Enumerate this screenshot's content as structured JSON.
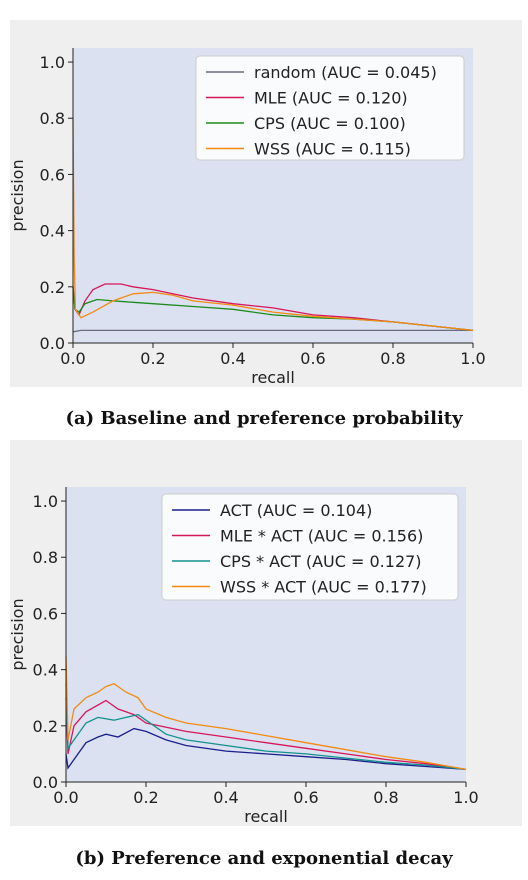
{
  "captions": {
    "a": "(a) Baseline and preference probability",
    "b": "(b) Preference and exponential decay"
  },
  "chart_data": [
    {
      "type": "line",
      "xlabel": "recall",
      "ylabel": "precision",
      "xlim": [
        0.0,
        1.0
      ],
      "ylim": [
        0.0,
        1.05
      ],
      "xticks": [
        "0.0",
        "0.2",
        "0.4",
        "0.6",
        "0.8",
        "1.0"
      ],
      "yticks": [
        "0.0",
        "0.2",
        "0.4",
        "0.6",
        "0.8",
        "1.0"
      ],
      "grid": false,
      "legend_position": "top-right",
      "background_color": "#dbe1f1",
      "series": [
        {
          "name": "random (AUC = 0.045)",
          "color": "#6b6b80",
          "points": [
            [
              0.0,
              0.04
            ],
            [
              0.02,
              0.045
            ],
            [
              0.1,
              0.045
            ],
            [
              0.3,
              0.045
            ],
            [
              0.5,
              0.045
            ],
            [
              0.7,
              0.045
            ],
            [
              0.9,
              0.045
            ],
            [
              1.0,
              0.045
            ]
          ]
        },
        {
          "name": "MLE (AUC = 0.120)",
          "color": "#d6175a",
          "points": [
            [
              0.0,
              0.2
            ],
            [
              0.005,
              0.12
            ],
            [
              0.015,
              0.1
            ],
            [
              0.03,
              0.15
            ],
            [
              0.05,
              0.19
            ],
            [
              0.08,
              0.21
            ],
            [
              0.12,
              0.21
            ],
            [
              0.15,
              0.2
            ],
            [
              0.2,
              0.19
            ],
            [
              0.3,
              0.16
            ],
            [
              0.4,
              0.14
            ],
            [
              0.5,
              0.125
            ],
            [
              0.6,
              0.1
            ],
            [
              0.7,
              0.09
            ],
            [
              0.8,
              0.075
            ],
            [
              0.9,
              0.06
            ],
            [
              1.0,
              0.045
            ]
          ]
        },
        {
          "name": "CPS (AUC = 0.100)",
          "color": "#1e8a1e",
          "points": [
            [
              0.0,
              0.2
            ],
            [
              0.005,
              0.12
            ],
            [
              0.015,
              0.11
            ],
            [
              0.03,
              0.14
            ],
            [
              0.06,
              0.155
            ],
            [
              0.1,
              0.15
            ],
            [
              0.15,
              0.145
            ],
            [
              0.2,
              0.14
            ],
            [
              0.3,
              0.13
            ],
            [
              0.4,
              0.12
            ],
            [
              0.5,
              0.1
            ],
            [
              0.6,
              0.09
            ],
            [
              0.7,
              0.085
            ],
            [
              0.8,
              0.075
            ],
            [
              0.9,
              0.06
            ],
            [
              1.0,
              0.045
            ]
          ]
        },
        {
          "name": "WSS (AUC = 0.115)",
          "color": "#f48a12",
          "points": [
            [
              0.0,
              0.8
            ],
            [
              0.003,
              0.3
            ],
            [
              0.006,
              0.12
            ],
            [
              0.02,
              0.09
            ],
            [
              0.05,
              0.11
            ],
            [
              0.1,
              0.15
            ],
            [
              0.15,
              0.175
            ],
            [
              0.2,
              0.18
            ],
            [
              0.25,
              0.17
            ],
            [
              0.3,
              0.15
            ],
            [
              0.4,
              0.135
            ],
            [
              0.5,
              0.11
            ],
            [
              0.6,
              0.095
            ],
            [
              0.7,
              0.085
            ],
            [
              0.75,
              0.08
            ],
            [
              0.8,
              0.075
            ],
            [
              0.9,
              0.06
            ],
            [
              1.0,
              0.045
            ]
          ]
        }
      ]
    },
    {
      "type": "line",
      "xlabel": "recall",
      "ylabel": "precision",
      "xlim": [
        0.0,
        1.0
      ],
      "ylim": [
        0.0,
        1.05
      ],
      "xticks": [
        "0.0",
        "0.2",
        "0.4",
        "0.6",
        "0.8",
        "1.0"
      ],
      "yticks": [
        "0.0",
        "0.2",
        "0.4",
        "0.6",
        "0.8",
        "1.0"
      ],
      "grid": false,
      "legend_position": "top-right",
      "background_color": "#dbe1f1",
      "series": [
        {
          "name": "ACT (AUC = 0.104)",
          "color": "#1b1f8c",
          "points": [
            [
              0.0,
              0.1
            ],
            [
              0.005,
              0.05
            ],
            [
              0.02,
              0.08
            ],
            [
              0.05,
              0.14
            ],
            [
              0.08,
              0.16
            ],
            [
              0.1,
              0.17
            ],
            [
              0.13,
              0.16
            ],
            [
              0.17,
              0.19
            ],
            [
              0.2,
              0.18
            ],
            [
              0.25,
              0.15
            ],
            [
              0.3,
              0.13
            ],
            [
              0.4,
              0.11
            ],
            [
              0.5,
              0.1
            ],
            [
              0.6,
              0.09
            ],
            [
              0.7,
              0.08
            ],
            [
              0.8,
              0.065
            ],
            [
              0.9,
              0.055
            ],
            [
              1.0,
              0.045
            ]
          ]
        },
        {
          "name": "MLE * ACT (AUC = 0.156)",
          "color": "#d6175a",
          "points": [
            [
              0.0,
              0.3
            ],
            [
              0.005,
              0.1
            ],
            [
              0.02,
              0.2
            ],
            [
              0.05,
              0.25
            ],
            [
              0.1,
              0.29
            ],
            [
              0.13,
              0.26
            ],
            [
              0.15,
              0.25
            ],
            [
              0.17,
              0.24
            ],
            [
              0.2,
              0.21
            ],
            [
              0.3,
              0.18
            ],
            [
              0.4,
              0.16
            ],
            [
              0.5,
              0.14
            ],
            [
              0.6,
              0.12
            ],
            [
              0.7,
              0.1
            ],
            [
              0.8,
              0.08
            ],
            [
              0.9,
              0.065
            ],
            [
              1.0,
              0.045
            ]
          ]
        },
        {
          "name": "CPS * ACT (AUC = 0.127)",
          "color": "#14918c",
          "points": [
            [
              0.0,
              0.35
            ],
            [
              0.005,
              0.12
            ],
            [
              0.02,
              0.15
            ],
            [
              0.05,
              0.21
            ],
            [
              0.08,
              0.23
            ],
            [
              0.12,
              0.22
            ],
            [
              0.15,
              0.23
            ],
            [
              0.18,
              0.24
            ],
            [
              0.2,
              0.22
            ],
            [
              0.25,
              0.17
            ],
            [
              0.3,
              0.15
            ],
            [
              0.4,
              0.13
            ],
            [
              0.5,
              0.11
            ],
            [
              0.6,
              0.1
            ],
            [
              0.7,
              0.085
            ],
            [
              0.8,
              0.07
            ],
            [
              0.9,
              0.06
            ],
            [
              1.0,
              0.045
            ]
          ]
        },
        {
          "name": "WSS * ACT (AUC = 0.177)",
          "color": "#f48a12",
          "points": [
            [
              0.0,
              0.45
            ],
            [
              0.005,
              0.15
            ],
            [
              0.02,
              0.26
            ],
            [
              0.05,
              0.3
            ],
            [
              0.08,
              0.32
            ],
            [
              0.1,
              0.34
            ],
            [
              0.12,
              0.35
            ],
            [
              0.15,
              0.32
            ],
            [
              0.18,
              0.3
            ],
            [
              0.2,
              0.26
            ],
            [
              0.25,
              0.23
            ],
            [
              0.3,
              0.21
            ],
            [
              0.4,
              0.19
            ],
            [
              0.5,
              0.165
            ],
            [
              0.6,
              0.14
            ],
            [
              0.7,
              0.115
            ],
            [
              0.8,
              0.09
            ],
            [
              0.9,
              0.07
            ],
            [
              1.0,
              0.045
            ]
          ]
        }
      ]
    }
  ]
}
